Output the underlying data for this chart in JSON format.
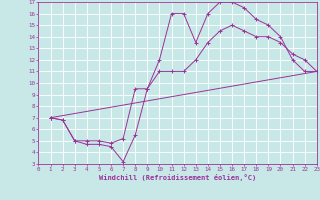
{
  "background_color": "#c8e8e8",
  "grid_color": "#ffffff",
  "line_color": "#993399",
  "xlabel": "Windchill (Refroidissement éolien,°C)",
  "xlim": [
    0,
    23
  ],
  "ylim": [
    3,
    17
  ],
  "curve1_x": [
    1,
    2,
    3,
    4,
    5,
    6,
    7,
    8,
    9,
    10,
    11,
    12,
    13,
    14,
    15,
    16,
    17,
    18,
    19,
    20,
    21,
    22,
    23
  ],
  "curve1_y": [
    7.0,
    6.8,
    5.0,
    4.7,
    4.7,
    4.5,
    3.2,
    5.5,
    9.5,
    12.0,
    16.0,
    16.0,
    13.5,
    16.0,
    17.0,
    17.0,
    16.5,
    15.5,
    15.0,
    14.0,
    12.0,
    11.0,
    11.0
  ],
  "curve2_x": [
    1,
    2,
    3,
    4,
    5,
    6,
    7,
    8,
    9,
    10,
    11,
    12,
    13,
    14,
    15,
    16,
    17,
    18,
    19,
    20,
    21,
    22,
    23
  ],
  "curve2_y": [
    7.0,
    6.8,
    5.0,
    5.0,
    5.0,
    4.8,
    5.2,
    9.5,
    9.5,
    11.0,
    11.0,
    11.0,
    12.0,
    13.5,
    14.5,
    15.0,
    14.5,
    14.0,
    14.0,
    13.5,
    12.5,
    12.0,
    11.0
  ],
  "curve3_x": [
    1,
    23
  ],
  "curve3_y": [
    7.0,
    11.0
  ]
}
